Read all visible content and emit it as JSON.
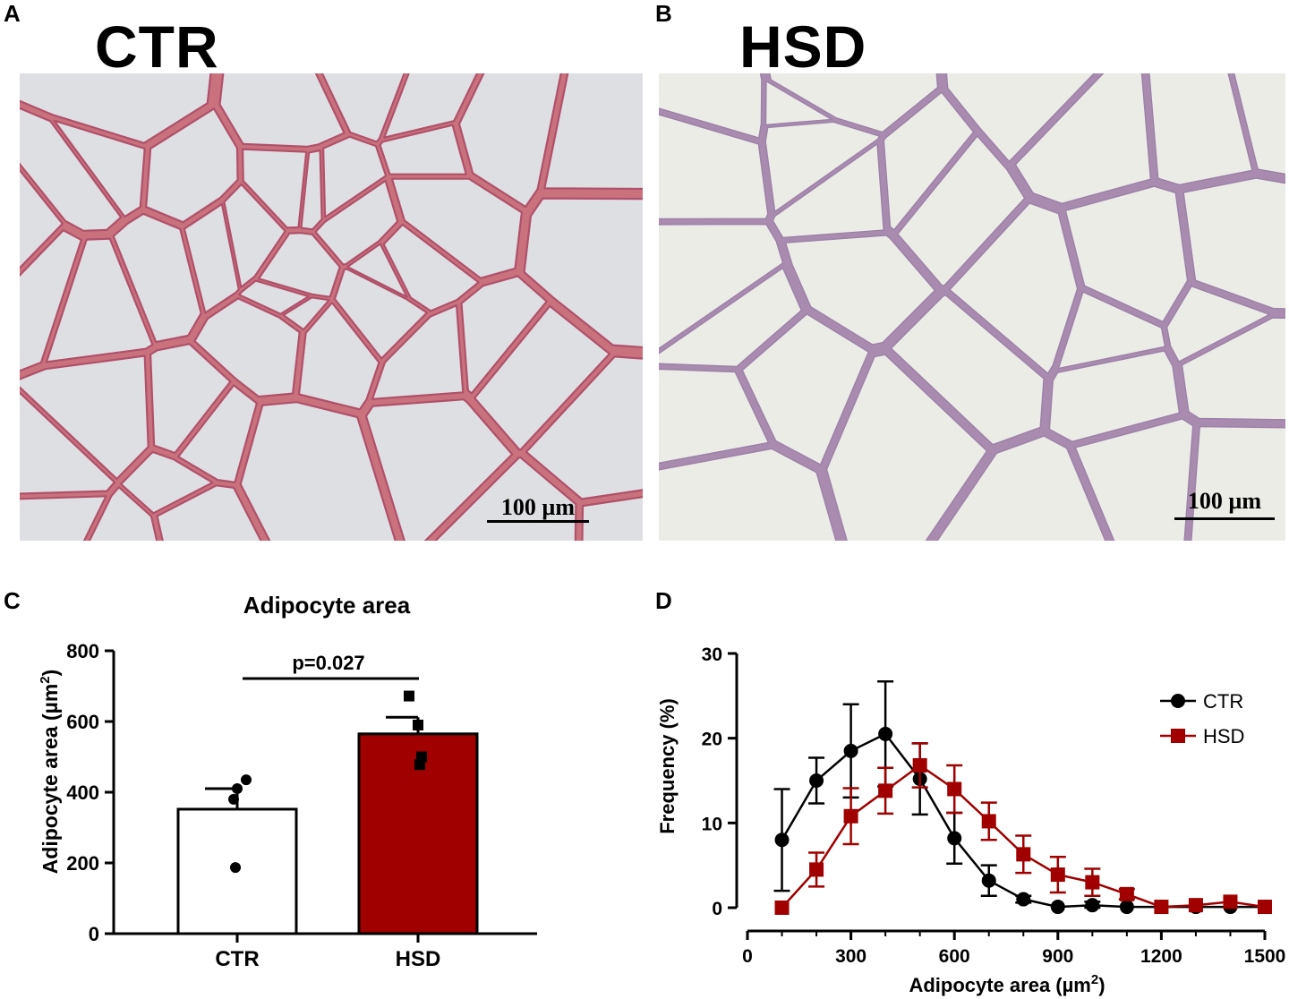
{
  "panels": {
    "a": {
      "letter": "A",
      "title": "CTR",
      "scale_label": "100 µm"
    },
    "b": {
      "letter": "B",
      "title": "HSD",
      "scale_label": "100 µm"
    },
    "c": {
      "letter": "C"
    },
    "d": {
      "letter": "D"
    }
  },
  "colors": {
    "ctr": "#000000",
    "hsd": "#a00000",
    "ctr_bar": "#ffffff",
    "hsd_bar": "#a00000",
    "tissue_a_bg": "#dedfe2",
    "tissue_a_wall": "#c9727e",
    "tissue_b_bg": "#ecece6",
    "tissue_b_wall": "#a98bb0"
  },
  "chart_data": [
    {
      "type": "bar",
      "title": "Adipocyte area",
      "ylabel": "Adipocyte area (µm²)",
      "ylabel_main": "Adipocyte area (µm",
      "ylabel_sup": "2",
      "ylabel_end": ")",
      "categories": [
        "CTR",
        "HSD"
      ],
      "values": [
        352,
        565
      ],
      "sem": [
        58,
        47
      ],
      "points": [
        [
          435,
          410,
          380,
          187
        ],
        [
          672,
          590,
          500,
          478
        ]
      ],
      "ylim": [
        0,
        800
      ],
      "yticks": [
        "0",
        "200",
        "400",
        "600",
        "800"
      ],
      "annotation": "p=0.027"
    },
    {
      "type": "line",
      "xlabel": "Adipocyte area (µm²)",
      "xlabel_main": "Adipocyte area (µm",
      "xlabel_sup": "2",
      "xlabel_end": ")",
      "ylabel": "Frequency (%)",
      "xlim": [
        0,
        1500
      ],
      "ylim": [
        0,
        30
      ],
      "xticks": [
        "0",
        "300",
        "600",
        "900",
        "1200",
        "1500"
      ],
      "yticks": [
        "0",
        "10",
        "20",
        "30"
      ],
      "legend_position": "top-right",
      "series": [
        {
          "name": "CTR",
          "x": [
            100,
            200,
            300,
            400,
            500,
            600,
            700,
            800,
            900,
            1000,
            1100,
            1200,
            1300,
            1400,
            1500
          ],
          "y": [
            8.0,
            15.0,
            18.5,
            20.5,
            15.2,
            8.2,
            3.2,
            1.0,
            0.1,
            0.3,
            0.1,
            0.1,
            0.1,
            0.1,
            0.1
          ],
          "err": [
            6.0,
            2.7,
            5.5,
            6.2,
            4.2,
            3.0,
            1.8,
            0.4,
            0.3,
            0.4,
            0.2,
            0.2,
            0.2,
            0.2,
            0.2
          ]
        },
        {
          "name": "HSD",
          "x": [
            100,
            200,
            300,
            400,
            500,
            600,
            700,
            800,
            900,
            1000,
            1100,
            1200,
            1300,
            1400,
            1500
          ],
          "y": [
            0.0,
            4.5,
            10.8,
            13.8,
            16.8,
            14.0,
            10.2,
            6.3,
            3.9,
            3.0,
            1.6,
            0.1,
            0.3,
            0.7,
            0.1
          ],
          "err": [
            0.2,
            2.0,
            3.3,
            2.7,
            2.6,
            2.8,
            2.2,
            2.2,
            2.1,
            1.6,
            0.6,
            0.2,
            0.3,
            0.3,
            0.2
          ]
        }
      ]
    }
  ]
}
